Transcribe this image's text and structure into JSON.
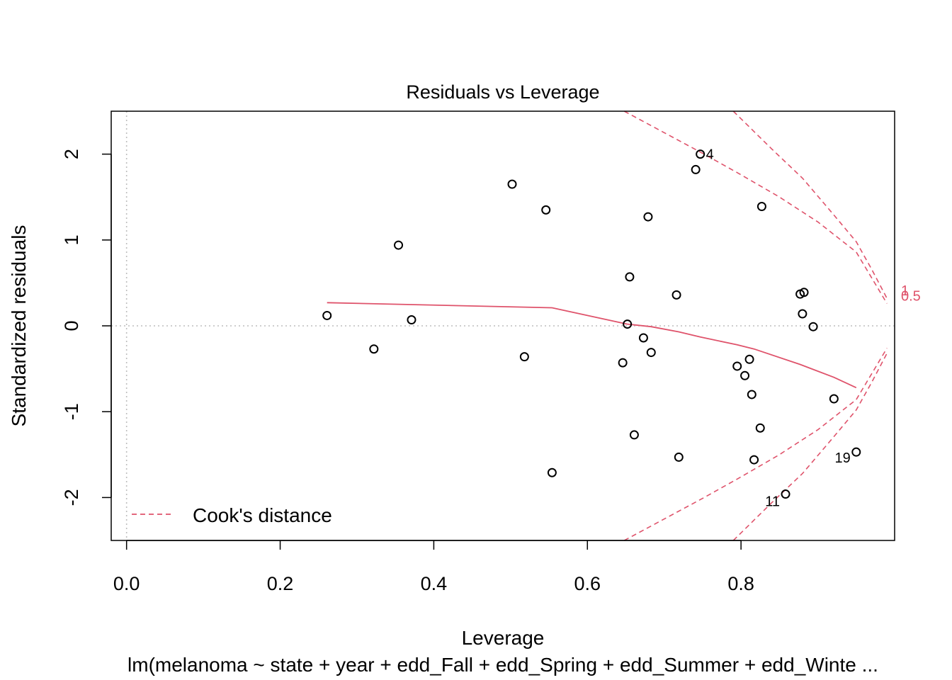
{
  "chart_data": {
    "type": "scatter",
    "title": "Residuals vs Leverage",
    "xlabel": "Leverage",
    "ylabel": "Standardized residuals",
    "subtitle": "lm(melanoma ~ state + year + edd_Fall + edd_Spring + edd_Summer + edd_Winte ...",
    "xlim": [
      -0.02,
      1.0
    ],
    "ylim": [
      -2.5,
      2.5
    ],
    "x_ticks": [
      "0.0",
      "0.2",
      "0.4",
      "0.6",
      "0.8"
    ],
    "x_tick_values": [
      0.0,
      0.2,
      0.4,
      0.6,
      0.8
    ],
    "y_ticks": [
      "-2",
      "-1",
      "0",
      "1",
      "2"
    ],
    "y_tick_values": [
      -2,
      -1,
      0,
      1,
      2
    ],
    "points": [
      {
        "x": 0.261,
        "y": 0.12
      },
      {
        "x": 0.322,
        "y": -0.27
      },
      {
        "x": 0.354,
        "y": 0.94
      },
      {
        "x": 0.371,
        "y": 0.07
      },
      {
        "x": 0.502,
        "y": 1.65
      },
      {
        "x": 0.518,
        "y": -0.36
      },
      {
        "x": 0.546,
        "y": 1.35
      },
      {
        "x": 0.554,
        "y": -1.71
      },
      {
        "x": 0.646,
        "y": -0.43
      },
      {
        "x": 0.652,
        "y": 0.02
      },
      {
        "x": 0.655,
        "y": 0.57
      },
      {
        "x": 0.661,
        "y": -1.27
      },
      {
        "x": 0.673,
        "y": -0.14
      },
      {
        "x": 0.679,
        "y": 1.27
      },
      {
        "x": 0.683,
        "y": -0.31
      },
      {
        "x": 0.716,
        "y": 0.36
      },
      {
        "x": 0.719,
        "y": -1.53
      },
      {
        "x": 0.741,
        "y": 1.82
      },
      {
        "x": 0.747,
        "y": 2.0,
        "label": "4"
      },
      {
        "x": 0.795,
        "y": -0.47
      },
      {
        "x": 0.805,
        "y": -0.58
      },
      {
        "x": 0.811,
        "y": -0.39
      },
      {
        "x": 0.814,
        "y": -0.8
      },
      {
        "x": 0.817,
        "y": -1.56
      },
      {
        "x": 0.825,
        "y": -1.19
      },
      {
        "x": 0.827,
        "y": 1.39
      },
      {
        "x": 0.858,
        "y": -1.96,
        "label": "11"
      },
      {
        "x": 0.877,
        "y": 0.37
      },
      {
        "x": 0.88,
        "y": 0.14
      },
      {
        "x": 0.882,
        "y": 0.39
      },
      {
        "x": 0.894,
        "y": -0.01
      },
      {
        "x": 0.921,
        "y": -0.85
      },
      {
        "x": 0.95,
        "y": -1.47,
        "label": "19"
      }
    ],
    "smooth_line": {
      "color": "#DF536B",
      "x": [
        0.261,
        0.554,
        0.652,
        0.683,
        0.719,
        0.747,
        0.795,
        0.817,
        0.877,
        0.921,
        0.95
      ],
      "y": [
        0.27,
        0.21,
        0.02,
        -0.01,
        -0.07,
        -0.13,
        -0.22,
        -0.27,
        -0.45,
        -0.6,
        -0.72
      ]
    },
    "reference_lines": {
      "h": 0,
      "v": 0,
      "style": "dotted",
      "color": "#BEBEBE"
    },
    "cooks_distance": {
      "color": "#DF536B",
      "legend_label": "Cook's distance",
      "legend_position": "bottomleft",
      "levels": [
        {
          "label": "0.5",
          "upper": {
            "x": [
              0.648,
              0.7,
              0.75,
              0.8,
              0.85,
              0.9,
              0.95,
              0.99
            ],
            "y": [
              2.5,
              2.25,
              2.01,
              1.76,
              1.5,
              1.21,
              0.86,
              0.26
            ]
          },
          "lower": {
            "x": [
              0.648,
              0.7,
              0.75,
              0.8,
              0.85,
              0.9,
              0.95,
              0.99
            ],
            "y": [
              -2.5,
              -2.25,
              -2.01,
              -1.76,
              -1.5,
              -1.21,
              -0.86,
              -0.26
            ]
          }
        },
        {
          "label": "1",
          "upper": {
            "x": [
              0.79,
              0.84,
              0.88,
              0.92,
              0.95,
              0.97,
              0.99
            ],
            "y": [
              2.5,
              2.06,
              1.72,
              1.3,
              0.98,
              0.66,
              0.32
            ]
          },
          "lower": {
            "x": [
              0.79,
              0.84,
              0.88,
              0.92,
              0.95,
              0.97,
              0.99
            ],
            "y": [
              -2.5,
              -2.06,
              -1.72,
              -1.3,
              -0.98,
              -0.66,
              -0.32
            ]
          }
        }
      ]
    }
  }
}
